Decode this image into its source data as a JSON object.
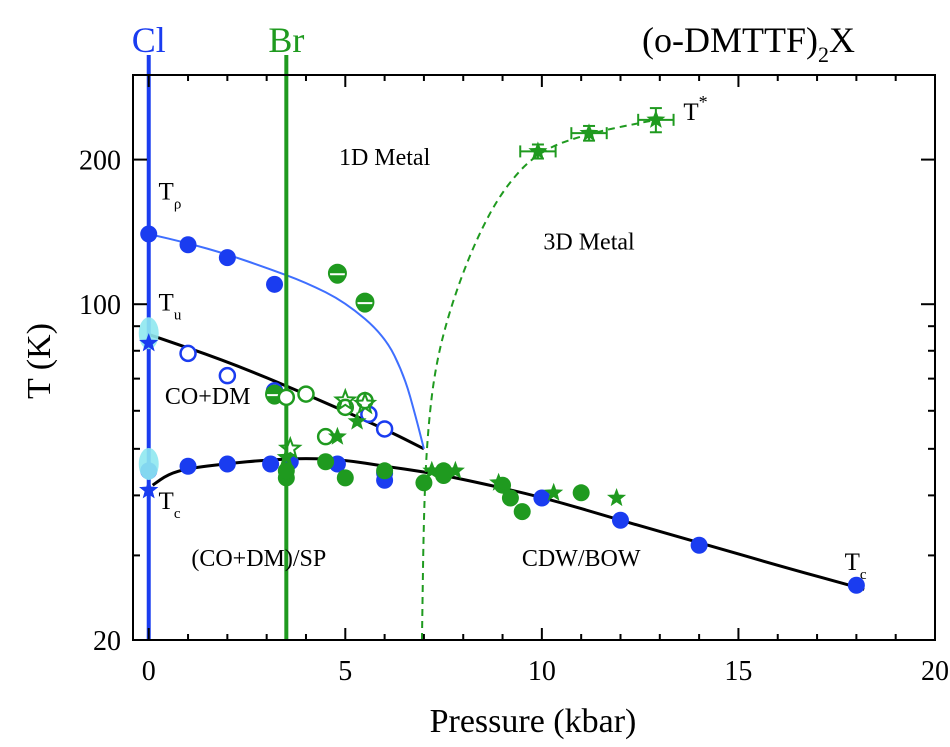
{
  "chart_data": {
    "type": "scatter",
    "title": "(o-DMTTF)",
    "title_sub": "2",
    "title_tail": "X",
    "xlabel": "Pressure (kbar)",
    "ylabel": "T (K)",
    "xlim": [
      -0.4,
      20
    ],
    "ylim": [
      20,
      300
    ],
    "yscale": "log",
    "x_ticks": [
      0,
      5,
      10,
      15,
      20
    ],
    "y_ticks": [
      20,
      100,
      200
    ],
    "grid": false,
    "colors": {
      "Cl": "#1a3cf0",
      "Br": "#1f9a1f",
      "fit_Tc": "#000000",
      "fit_Trho": "#3f6fff",
      "cyan": "#8fe8ef"
    },
    "compounds": [
      {
        "name": "Cl",
        "pressure": 0,
        "color": "#1a3cf0"
      },
      {
        "name": "Br",
        "pressure": 3.5,
        "color": "#1f9a1f"
      }
    ],
    "regions": [
      {
        "label": "1D Metal",
        "x": 6.0,
        "y": 195
      },
      {
        "label": "3D Metal",
        "x": 11.2,
        "y": 130
      },
      {
        "label": "CO+DM",
        "x": 1.5,
        "y": 62
      },
      {
        "label": "(CO+DM)/SP",
        "x": 2.8,
        "y": 28.5
      },
      {
        "label": "CDW/BOW",
        "x": 11.0,
        "y": 28.5
      }
    ],
    "marker_labels": [
      {
        "main": "T",
        "sub": "ρ",
        "sup": "",
        "x": 0.25,
        "y": 165
      },
      {
        "main": "T",
        "sub": "u",
        "sup": "",
        "x": 0.25,
        "y": 97
      },
      {
        "main": "T",
        "sub": "c",
        "sup": "",
        "x": 0.25,
        "y": 37.5
      },
      {
        "main": "T",
        "sub": "c",
        "sup": "",
        "x": 17.7,
        "y": 28
      },
      {
        "main": "T",
        "sub": "",
        "sup": "*",
        "x": 13.6,
        "y": 242
      }
    ],
    "series": [
      {
        "marker": "circle-filled",
        "color": "#1a3cf0",
        "points": [
          [
            0,
            140
          ],
          [
            1,
            133
          ],
          [
            2,
            125
          ],
          [
            3.2,
            110
          ],
          [
            0,
            45
          ],
          [
            1,
            46
          ],
          [
            2,
            46.5
          ],
          [
            3.1,
            46.5
          ],
          [
            3.6,
            47
          ],
          [
            4.8,
            46.5
          ],
          [
            6,
            43
          ],
          [
            6,
            44.5
          ],
          [
            10,
            39.5
          ],
          [
            12,
            35.5
          ],
          [
            14,
            31.5
          ],
          [
            18,
            26
          ]
        ]
      },
      {
        "marker": "circle-open",
        "color": "#1a3cf0",
        "points": [
          [
            1,
            79
          ],
          [
            2,
            71
          ],
          [
            3.2,
            66
          ],
          [
            5.6,
            59
          ],
          [
            6,
            55
          ]
        ]
      },
      {
        "marker": "circle-filled",
        "color": "#1f9a1f",
        "points": [
          [
            3.5,
            43.5
          ],
          [
            5,
            43.5
          ],
          [
            6,
            45
          ],
          [
            7,
            42.5
          ],
          [
            7.5,
            45
          ],
          [
            7.5,
            44
          ],
          [
            9,
            42
          ],
          [
            9.2,
            39.5
          ],
          [
            9.5,
            37
          ],
          [
            11,
            40.5
          ],
          [
            4.5,
            47
          ],
          [
            3.5,
            45
          ]
        ]
      },
      {
        "marker": "circle-half",
        "color": "#1f9a1f",
        "points": [
          [
            3.2,
            65
          ],
          [
            4.8,
            116
          ],
          [
            5.5,
            101
          ]
        ]
      },
      {
        "marker": "circle-open",
        "color": "#1f9a1f",
        "points": [
          [
            3.5,
            64
          ],
          [
            4,
            65
          ],
          [
            5,
            61
          ],
          [
            5.5,
            63
          ],
          [
            4.5,
            53
          ]
        ]
      },
      {
        "marker": "star-filled",
        "color": "#1f9a1f",
        "points": [
          [
            3.5,
            48
          ],
          [
            4.8,
            53
          ],
          [
            5.3,
            57
          ],
          [
            7.2,
            45
          ],
          [
            7.8,
            45
          ],
          [
            8.9,
            42.5
          ],
          [
            10.3,
            40.5
          ],
          [
            11.9,
            39.5
          ]
        ]
      },
      {
        "marker": "star-open",
        "color": "#1f9a1f",
        "points": [
          [
            5.0,
            63
          ],
          [
            5.5,
            62
          ],
          [
            3.6,
            50
          ]
        ]
      },
      {
        "marker": "star-filled",
        "color": "#1a3cf0",
        "points": [
          [
            0,
            83
          ],
          [
            0,
            41
          ]
        ]
      },
      {
        "marker": "cyan-blob",
        "color": "#8fe8ef",
        "points": [
          [
            0,
            87
          ],
          [
            0,
            46.5
          ]
        ]
      }
    ],
    "error_points": [
      {
        "x": 9.9,
        "y": 208,
        "xerr": 0.45,
        "yerr": 7
      },
      {
        "x": 11.2,
        "y": 227,
        "xerr": 0.45,
        "yerr": 8
      },
      {
        "x": 12.9,
        "y": 242,
        "xerr": 0.45,
        "yerr": 14
      }
    ],
    "lines": [
      {
        "name": "Tc-fit",
        "color": "#000000",
        "style": "solid",
        "points": [
          [
            0.1,
            42
          ],
          [
            0.5,
            44.3
          ],
          [
            1,
            45.5
          ],
          [
            2,
            46.6
          ],
          [
            3,
            47.4
          ],
          [
            4,
            47.8
          ],
          [
            5,
            47.4
          ],
          [
            6,
            46
          ],
          [
            7,
            44.8
          ],
          [
            8,
            43.2
          ],
          [
            10,
            39.7
          ],
          [
            12,
            35.5
          ],
          [
            14,
            31.9
          ],
          [
            16,
            28.6
          ],
          [
            18.2,
            25.5
          ]
        ]
      },
      {
        "name": "Tu-fit",
        "color": "#000000",
        "style": "solid",
        "points": [
          [
            0,
            86.5
          ],
          [
            2,
            76
          ],
          [
            4,
            65
          ],
          [
            6,
            55
          ],
          [
            7,
            50
          ]
        ]
      },
      {
        "name": "Trho-fit",
        "color": "#3f6fff",
        "style": "solid",
        "points": [
          [
            0,
            140
          ],
          [
            1,
            134
          ],
          [
            2,
            127
          ],
          [
            3,
            119
          ],
          [
            4,
            111
          ],
          [
            5,
            101
          ],
          [
            6,
            86
          ],
          [
            6.5,
            71
          ],
          [
            6.8,
            58
          ],
          [
            7,
            50
          ]
        ]
      },
      {
        "name": "T*-boundary",
        "color": "#1f9a1f",
        "style": "dashed",
        "points": [
          [
            6.95,
            20
          ],
          [
            7,
            38
          ],
          [
            7.1,
            55
          ],
          [
            7.3,
            75
          ],
          [
            7.7,
            100
          ],
          [
            8.3,
            135
          ],
          [
            9,
            173
          ],
          [
            9.9,
            208
          ],
          [
            11.2,
            227
          ],
          [
            12.9,
            242
          ]
        ]
      }
    ]
  }
}
